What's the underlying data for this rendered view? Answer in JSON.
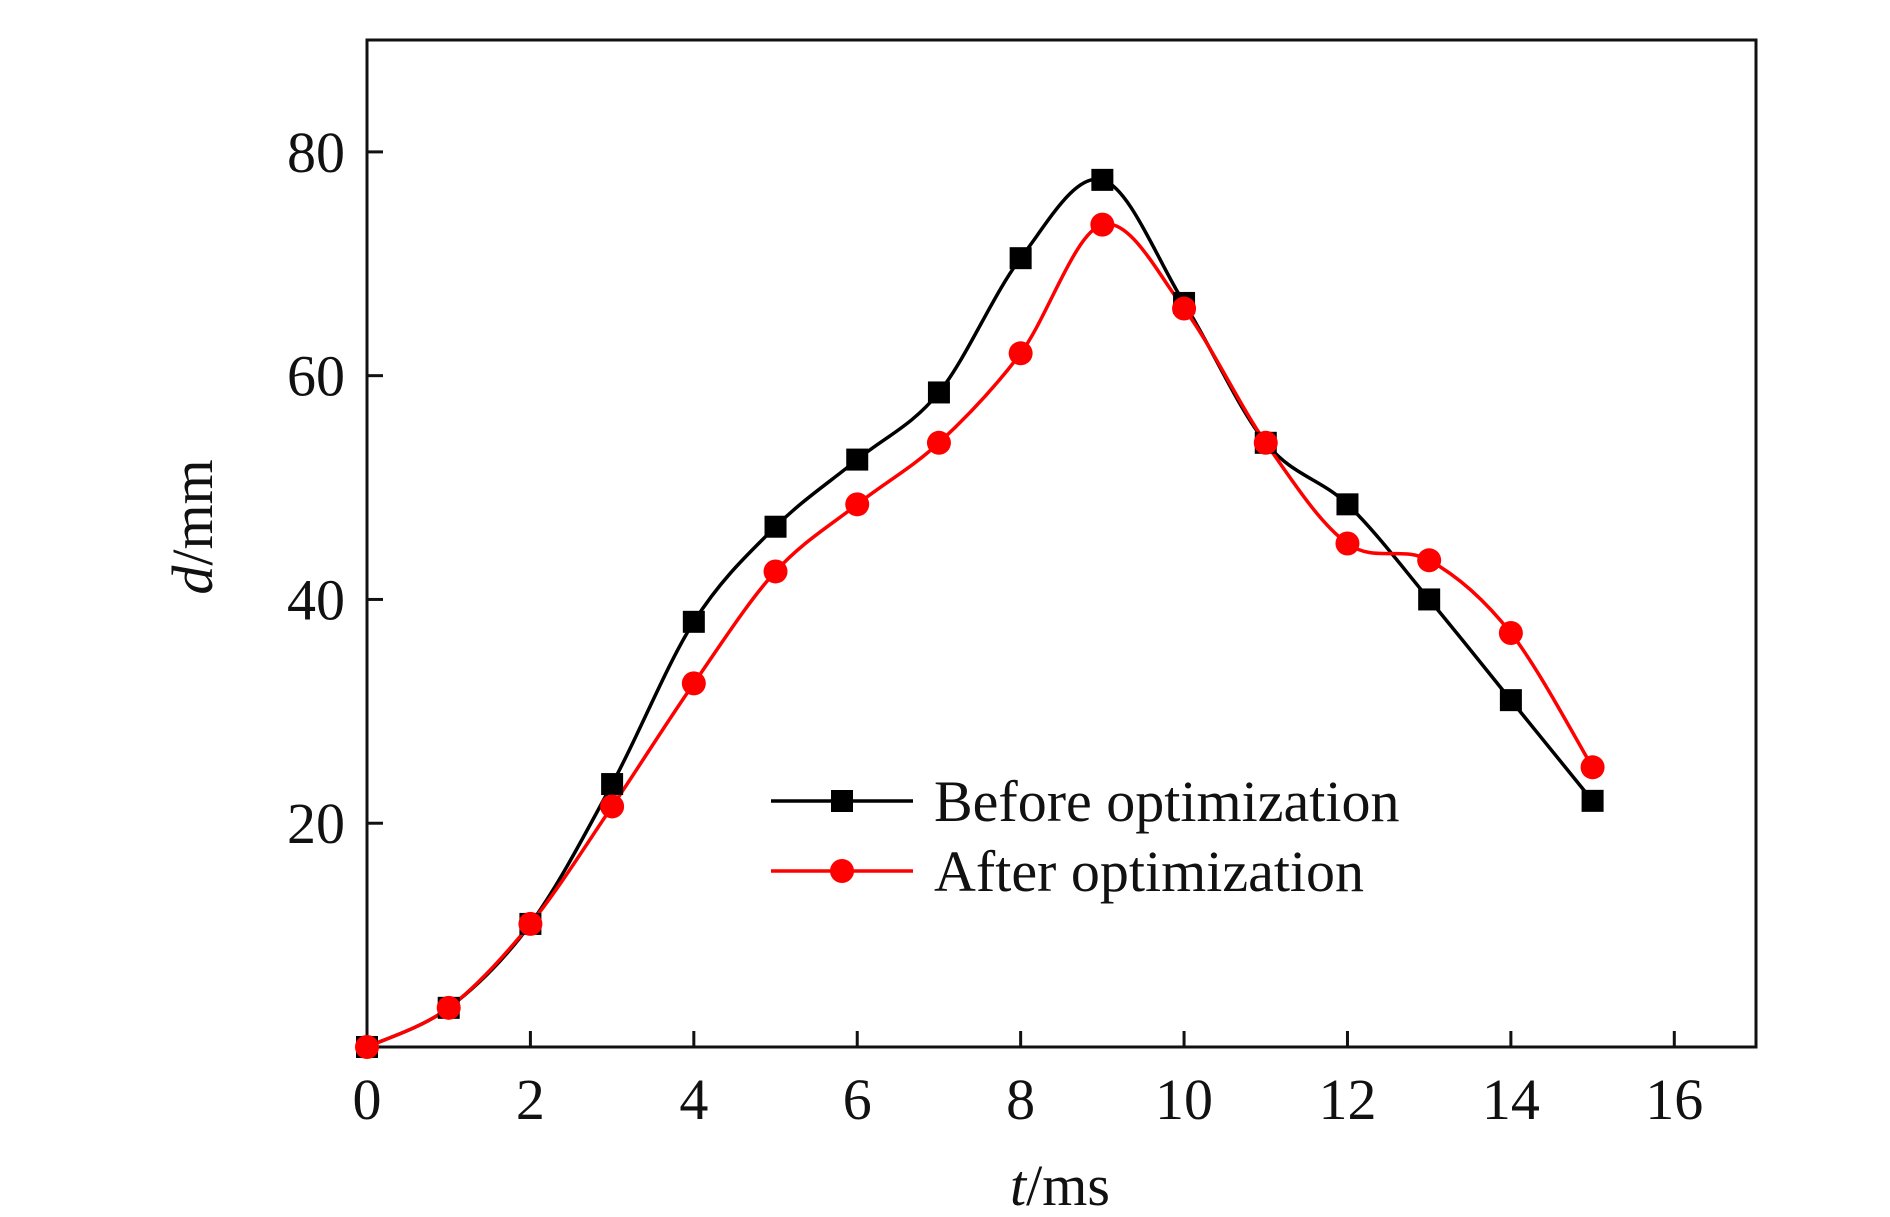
{
  "chart_data": {
    "type": "line",
    "title": "",
    "xlabel": {
      "var": "t",
      "unit": "/ms"
    },
    "ylabel": {
      "var": "d",
      "unit": "/mm"
    },
    "xlim": [
      0,
      17
    ],
    "ylim": [
      0,
      90
    ],
    "x_ticks": [
      0,
      2,
      4,
      6,
      8,
      10,
      12,
      14,
      16
    ],
    "y_ticks": [
      20,
      40,
      60,
      80
    ],
    "grid": false,
    "legend_position": "center-right",
    "series": [
      {
        "name": "Before optimization",
        "color": "#000000",
        "marker": "square",
        "x": [
          0,
          1,
          2,
          3,
          4,
          5,
          6,
          7,
          8,
          9,
          10,
          11,
          12,
          13,
          14,
          15
        ],
        "y": [
          0,
          3.5,
          11,
          23.5,
          38,
          46.5,
          52.5,
          58.5,
          70.5,
          77.5,
          66.5,
          54,
          48.5,
          40,
          31,
          22
        ]
      },
      {
        "name": "After optimization",
        "color": "#ff0000",
        "marker": "circle",
        "x": [
          0,
          1,
          2,
          3,
          4,
          5,
          6,
          7,
          8,
          9,
          10,
          11,
          12,
          13,
          14,
          15
        ],
        "y": [
          0,
          3.5,
          11,
          21.5,
          32.5,
          42.5,
          48.5,
          54,
          62,
          73.5,
          66,
          54,
          45,
          43.5,
          37,
          25
        ]
      }
    ]
  }
}
